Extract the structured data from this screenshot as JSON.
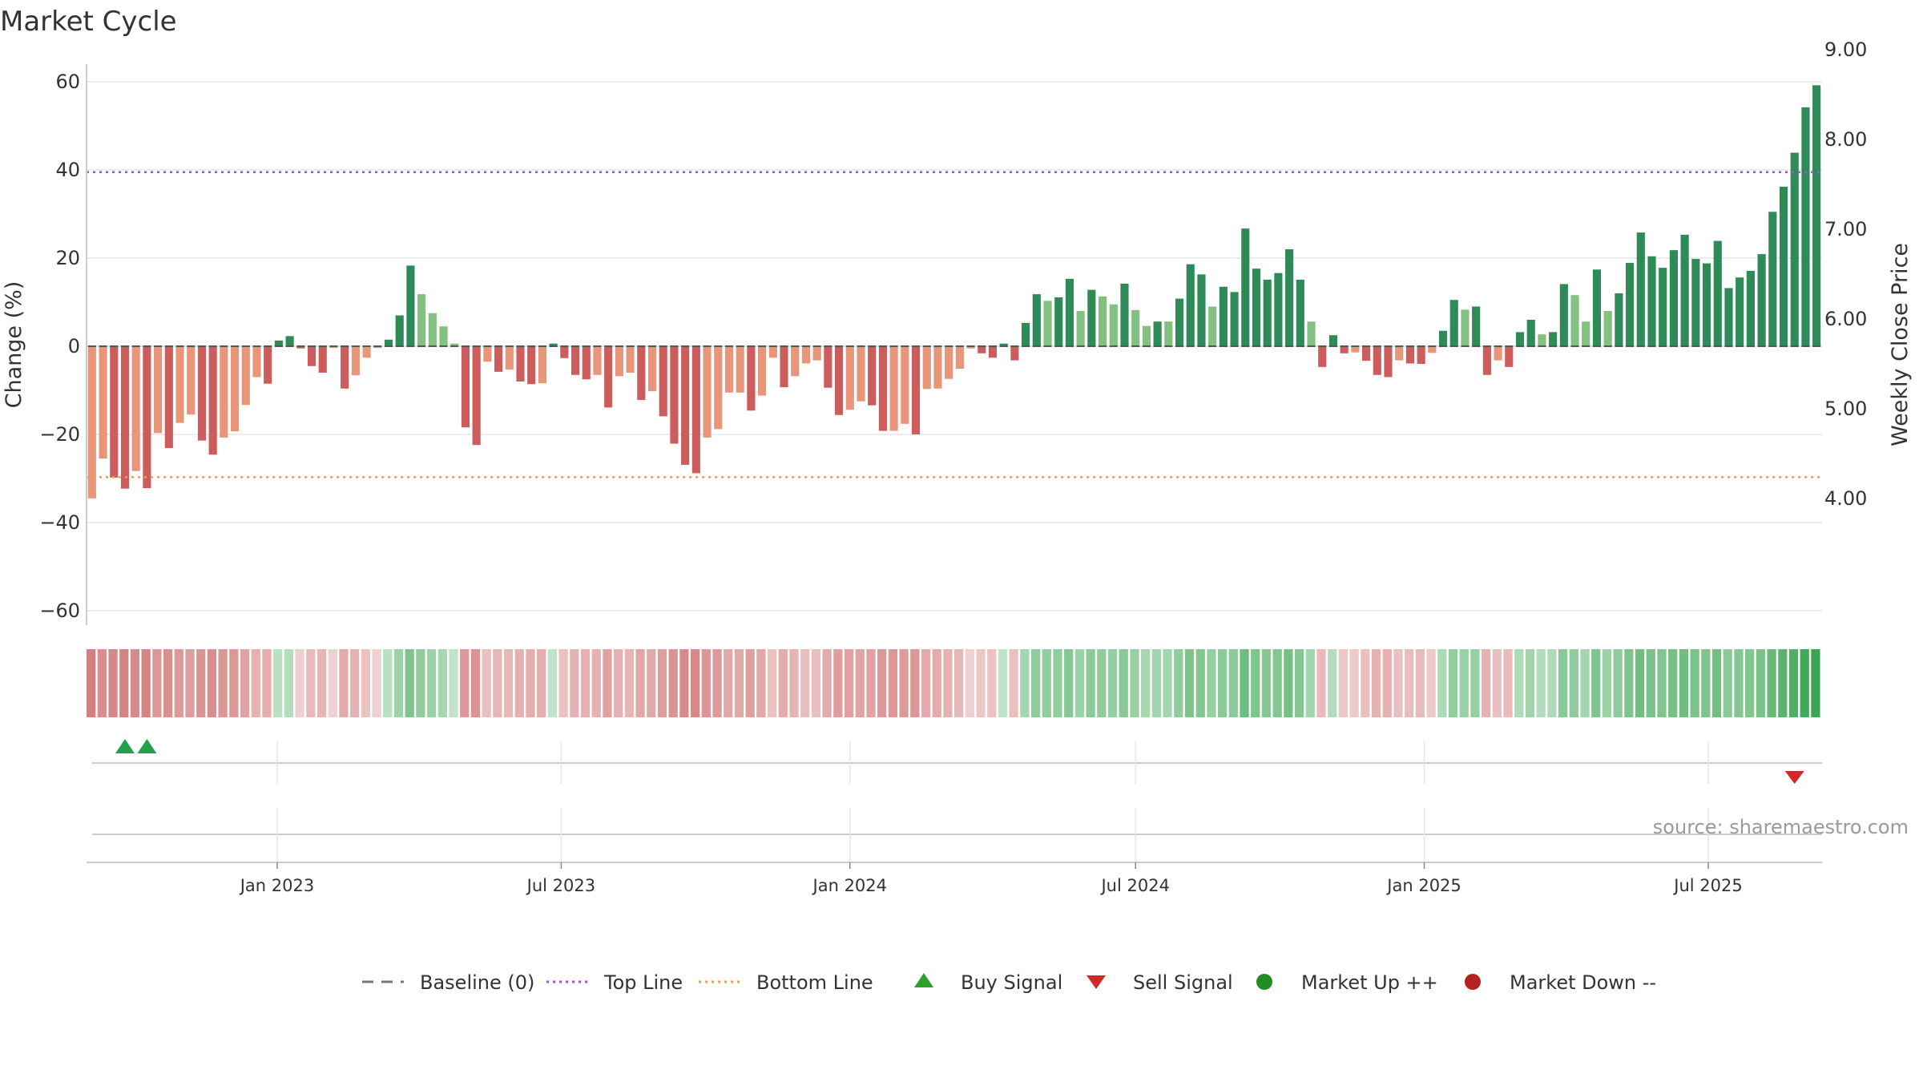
{
  "chart_data": {
    "type": "bar",
    "title": "Market Cycle",
    "ylabel": "Change (%)",
    "y2label": "Weekly Close Price",
    "ylim": [
      -60,
      60
    ],
    "y2lim": [
      4.0,
      9.0
    ],
    "yticks": [
      60,
      40,
      20,
      0,
      -20,
      -40,
      -60
    ],
    "yticks_labels": [
      "60",
      "40",
      "20",
      "0",
      "−20",
      "−40",
      "−60"
    ],
    "y2ticks": [
      "9.00",
      "8.00",
      "7.00",
      "6.00",
      "5.00",
      "4.00"
    ],
    "top_line": 39.5,
    "bottom_line": -29.7,
    "x_start": "2022-09-05",
    "x_interval_days": 7,
    "x_ticks": [
      {
        "date": "2023-01-01",
        "label": "Jan 2023"
      },
      {
        "date": "2023-07-01",
        "label": "Jul 2023"
      },
      {
        "date": "2024-01-01",
        "label": "Jan 2024"
      },
      {
        "date": "2024-07-01",
        "label": "Jul 2024"
      },
      {
        "date": "2025-01-01",
        "label": "Jan 2025"
      },
      {
        "date": "2025-07-01",
        "label": "Jul 2025"
      }
    ],
    "values": [
      -34.5,
      -25.5,
      -29.8,
      -32.3,
      -28.3,
      -32.2,
      -19.7,
      -23.1,
      -17.4,
      -15.5,
      -21.4,
      -24.6,
      -20.7,
      -19.3,
      -13.3,
      -7,
      -8.5,
      1.3,
      2.3,
      -0.5,
      -4.5,
      -6,
      -0.4,
      -9.6,
      -6.6,
      -2.6,
      -0.4,
      1.5,
      7,
      18.3,
      11.8,
      7.5,
      4.5,
      0.6,
      -18.4,
      -22.4,
      -3.5,
      -5.8,
      -5.3,
      -8,
      -8.6,
      -8.4,
      0.6,
      -2.7,
      -6.5,
      -7.5,
      -6.5,
      -13.9,
      -6.8,
      -6,
      -12.2,
      -10.2,
      -15.9,
      -22.1,
      -26.9,
      -28.8,
      -20.7,
      -18.8,
      -10.5,
      -10.5,
      -14.6,
      -11.2,
      -2.6,
      -9.3,
      -6.8,
      -3.9,
      -3.2,
      -9.4,
      -15.6,
      -14.4,
      -12.5,
      -13.4,
      -19.2,
      -19.2,
      -17.6,
      -20,
      -9.7,
      -9.6,
      -7.4,
      -5.1,
      -0.5,
      -1.6,
      -2.6,
      0.6,
      -3.2,
      5.3,
      11.8,
      10.3,
      11.1,
      15.3,
      8,
      12.8,
      11.3,
      9.5,
      14.2,
      8.2,
      4.6,
      5.6,
      5.6,
      10.8,
      18.6,
      16.3,
      9,
      13.5,
      12.3,
      26.7,
      17.6,
      15.1,
      16.6,
      22,
      15.1,
      5.6,
      -4.7,
      2.5,
      -1.6,
      -1.4,
      -3.3,
      -6.5,
      -7,
      -3.2,
      -3.9,
      -4,
      -1.5,
      3.5,
      10.5,
      8.3,
      9,
      -6.5,
      -3.2,
      -4.7,
      3.2,
      6,
      2.7,
      3.2,
      14.1,
      11.6,
      5.6,
      17.4,
      8,
      12,
      18.9,
      25.8,
      20.4,
      17.8,
      21.8,
      25.3,
      19.8,
      18.8,
      23.9,
      13.2,
      15.6,
      17.1,
      20.9,
      30.5,
      36.2,
      43.9,
      54.2,
      59.2
    ],
    "signal_colors": {
      "strong_down": "#cd5c5c",
      "weak_down": "#e8957a",
      "strong_up": "#2e8b57",
      "weak_up": "#82c17f"
    },
    "buy_signals": [
      3,
      5
    ],
    "sell_signals": [
      155
    ],
    "legend": [
      {
        "label": "Baseline (0)",
        "kind": "dash",
        "color": "#777777"
      },
      {
        "label": "Top Line",
        "kind": "dot",
        "color": "#9b59d0"
      },
      {
        "label": "Bottom Line",
        "kind": "dot",
        "color": "#e8a060"
      },
      {
        "label": "Buy Signal",
        "kind": "tri-up",
        "color": "#2ca02c"
      },
      {
        "label": "Sell Signal",
        "kind": "tri-down",
        "color": "#d62728"
      },
      {
        "label": "Market Up ++",
        "kind": "circle",
        "color": "#228b22"
      },
      {
        "label": "Market Down --",
        "kind": "circle",
        "color": "#b22222"
      }
    ],
    "source": "source: sharemaestro.com"
  }
}
